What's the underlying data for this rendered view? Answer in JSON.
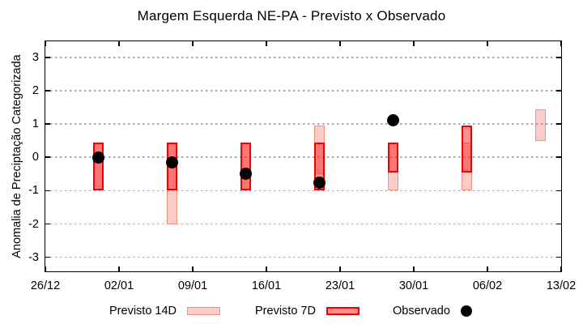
{
  "chart_data": {
    "type": "bar",
    "subtype": "floating-range-bars-with-points",
    "title": "Margem Esquerda NE-PA - Previsto x Observado",
    "ylabel": "Anomalia de Preciptação Categorizada",
    "xlabel": "",
    "ylim": [
      -3.42,
      3.48
    ],
    "grid": "horizontal-dotted",
    "x_axis_span_days": 49,
    "x_ticks": [
      {
        "day": 0,
        "label": "26/12"
      },
      {
        "day": 7,
        "label": "02/01"
      },
      {
        "day": 14,
        "label": "09/01"
      },
      {
        "day": 21,
        "label": "16/01"
      },
      {
        "day": 28,
        "label": "23/01"
      },
      {
        "day": 35,
        "label": "30/01"
      },
      {
        "day": 42,
        "label": "06/02"
      },
      {
        "day": 49,
        "label": "13/02"
      }
    ],
    "y_ticks": [
      {
        "value": 3,
        "label": "3"
      },
      {
        "value": 2,
        "label": "2"
      },
      {
        "value": 1,
        "label": "1"
      },
      {
        "value": 0,
        "label": "0"
      },
      {
        "value": -1,
        "label": "-1"
      },
      {
        "value": -2,
        "label": "-2"
      },
      {
        "value": -3,
        "label": "-3"
      }
    ],
    "bars": [
      {
        "date": "31/12",
        "day": 5,
        "previsto_14d": [
          -1.0,
          0.45
        ],
        "previsto_7d": [
          -1.0,
          0.45
        ],
        "observado": 0.0
      },
      {
        "date": "07/01",
        "day": 12,
        "previsto_14d": [
          -2.0,
          0.45
        ],
        "previsto_7d": [
          -1.0,
          0.45
        ],
        "observado": -0.15
      },
      {
        "date": "14/01",
        "day": 19,
        "previsto_14d": [
          -1.0,
          0.45
        ],
        "previsto_7d": [
          -1.0,
          0.45
        ],
        "observado": -0.5
      },
      {
        "date": "21/01",
        "day": 26,
        "previsto_14d": [
          -0.5,
          0.95
        ],
        "previsto_7d": [
          -1.0,
          0.45
        ],
        "observado": -0.75
      },
      {
        "date": "28/01",
        "day": 33,
        "previsto_14d": [
          -1.0,
          0.45
        ],
        "previsto_7d": [
          -0.45,
          0.45
        ],
        "observado": 1.1
      },
      {
        "date": "04/02",
        "day": 40,
        "previsto_14d": [
          -1.0,
          0.45
        ],
        "previsto_7d": [
          -0.45,
          0.95
        ],
        "observado": null
      },
      {
        "date": "11/02",
        "day": 47,
        "previsto_14d": [
          0.5,
          1.45
        ],
        "previsto_7d": null,
        "observado": null
      }
    ],
    "legend": {
      "position": "bottom-center",
      "items": [
        {
          "label": "Previsto 14D",
          "swatch": "range14"
        },
        {
          "label": "Previsto 7D",
          "swatch": "range7"
        },
        {
          "label": "Observado",
          "swatch": "dot"
        }
      ]
    },
    "colors": {
      "previsto_14d_fill": "rgba(246,110,96,0.35)",
      "previsto_14d_border": "#f0907e",
      "previsto_7d_fill": "rgba(255,30,30,0.5)",
      "previsto_7d_border": "#e60404",
      "observado": "#000000",
      "grid": "#a9a9a9",
      "axis": "#000000"
    }
  }
}
